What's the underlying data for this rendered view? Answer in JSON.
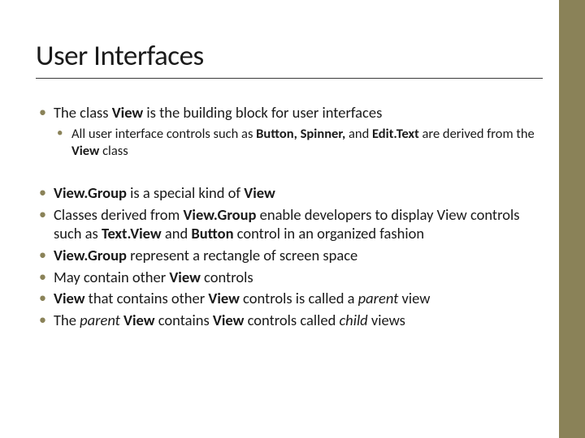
{
  "colors": {
    "sidebar": "#8a8258",
    "bullet": "#8a8258",
    "text": "#1a1a1a",
    "background": "#ffffff",
    "title_underline": "#3a3a3a"
  },
  "typography": {
    "title_fontsize": 35,
    "body_fontsize": 18.5,
    "sub_fontsize": 16.5,
    "font_family": "Calibri"
  },
  "title": "User Interfaces",
  "section1": {
    "item1_pre": "The class ",
    "item1_bold1": "View",
    "item1_post": " is the building block for user interfaces",
    "sub1_pre": "All user interface controls such as ",
    "sub1_bold1": "Button, Spinner,",
    "sub1_mid": " and ",
    "sub1_bold2": "Edit.Text",
    "sub1_post1": " are derived from the ",
    "sub1_bold3": "View",
    "sub1_post2": " class"
  },
  "section2": {
    "b1_bold1": "View.Group",
    "b1_mid": " is a special kind of ",
    "b1_bold2": "View",
    "b2_pre": "Classes derived from ",
    "b2_bold1": "View.Group",
    "b2_mid1": " enable developers to display View controls such as ",
    "b2_bold2": "Text.View",
    "b2_mid2": " and ",
    "b2_bold3": "Button",
    "b2_post": " control in an organized fashion",
    "b3_bold1": "View.Group",
    "b3_post": " represent a rectangle of screen space",
    "b4_pre": "May contain other ",
    "b4_bold1": "View",
    "b4_post": " controls",
    "b5_bold1": "View",
    "b5_mid1": " that contains other ",
    "b5_bold2": "View",
    "b5_mid2": " controls is called a ",
    "b5_italic": "parent",
    "b5_post": " view",
    "b6_pre": "The ",
    "b6_italic1": "parent",
    "b6_mid1": " ",
    "b6_bold1": "View",
    "b6_mid2": " contains ",
    "b6_bold2": "View",
    "b6_mid3": " controls called ",
    "b6_italic2": "child",
    "b6_post": " views"
  }
}
